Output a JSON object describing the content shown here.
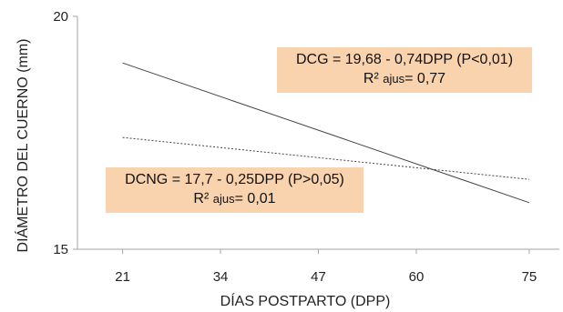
{
  "chart_data": {
    "type": "line",
    "xlabel": "DÍAS POSTPARTO (DPP)",
    "ylabel": "DIÁMETRO DEL CUERNO (mm)",
    "x_ticks": [
      "21",
      "34",
      "47",
      "60",
      "75"
    ],
    "y_ticks": [
      "15",
      "20"
    ],
    "xlim": [
      15,
      79
    ],
    "ylim": [
      15,
      20
    ],
    "grid": false,
    "series": [
      {
        "name": "DCG",
        "style": "solid",
        "x": [
          21,
          75
        ],
        "y": [
          19.0,
          16.0
        ]
      },
      {
        "name": "DCNG",
        "style": "dotted",
        "x": [
          21,
          75
        ],
        "y": [
          17.4,
          16.5
        ]
      }
    ],
    "annotations": {
      "dcg": {
        "equation": "DCG = 19,68 - 0,74DPP (P<0,01)",
        "r2_prefix": "R²",
        "r2_sub": "ajus",
        "r2_value": "= 0,77"
      },
      "dcng": {
        "equation": "DCNG = 17,7 - 0,25DPP (P>0,05)",
        "r2_prefix": "R²",
        "r2_sub": "ajus",
        "r2_value": "= 0,01"
      }
    }
  },
  "colors": {
    "annotation_bg": "#f9d3ae",
    "axis": "#a6a6a6",
    "line": "#444444"
  }
}
